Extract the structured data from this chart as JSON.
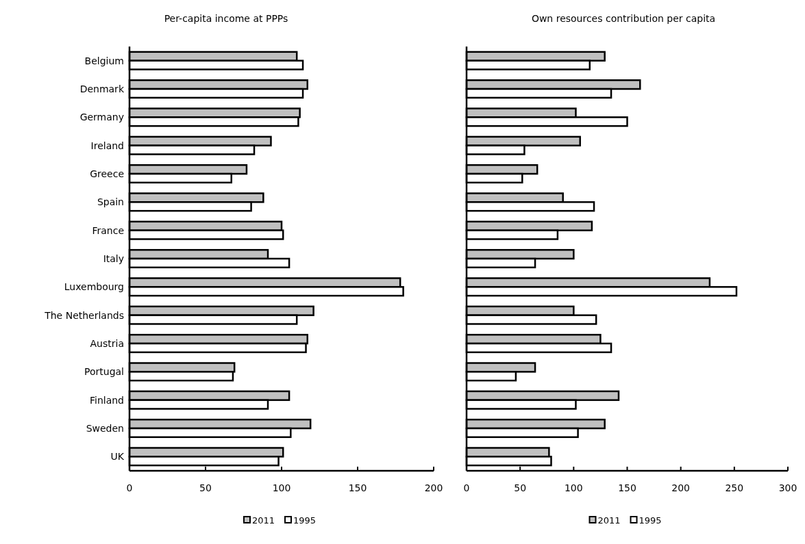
{
  "chart_data": [
    {
      "type": "bar",
      "orientation": "horizontal",
      "title": "Per-capita income at PPPs",
      "categories": [
        "Belgium",
        "Denmark",
        "Germany",
        "Ireland",
        "Greece",
        "Spain",
        "France",
        "Italy",
        "Luxembourg",
        "The Netherlands",
        "Austria",
        "Portugal",
        "Finland",
        "Sweden",
        "UK"
      ],
      "series": [
        {
          "name": "2011",
          "color": "#c0c0c0",
          "values": [
            110,
            117,
            112,
            93,
            77,
            88,
            100,
            91,
            178,
            121,
            117,
            69,
            105,
            119,
            101
          ]
        },
        {
          "name": "1995",
          "color": "#ffffff",
          "values": [
            114,
            114,
            111,
            82,
            67,
            80,
            101,
            105,
            180,
            110,
            116,
            68,
            91,
            106,
            98
          ]
        }
      ],
      "xlim": [
        0,
        200
      ],
      "xticks": [
        0,
        50,
        100,
        150,
        200
      ],
      "grid": false,
      "legend": "bottom"
    },
    {
      "type": "bar",
      "orientation": "horizontal",
      "title": "Own resources contribution per capita",
      "categories": [
        null,
        null,
        null,
        null,
        null,
        null,
        null,
        null,
        null,
        null,
        null,
        null,
        null,
        null,
        null
      ],
      "series": [
        {
          "name": "2011",
          "color": "#c0c0c0",
          "values": [
            129,
            162,
            102,
            106,
            66,
            90,
            117,
            100,
            227,
            100,
            125,
            64,
            142,
            129,
            77
          ]
        },
        {
          "name": "1995",
          "color": "#ffffff",
          "values": [
            115,
            135,
            150,
            54,
            52,
            119,
            85,
            64,
            252,
            121,
            135,
            46,
            102,
            104,
            79
          ]
        }
      ],
      "xlim": [
        0,
        300
      ],
      "xticks": [
        0,
        50,
        100,
        150,
        200,
        250,
        300
      ],
      "grid": false,
      "legend": "bottom"
    }
  ]
}
